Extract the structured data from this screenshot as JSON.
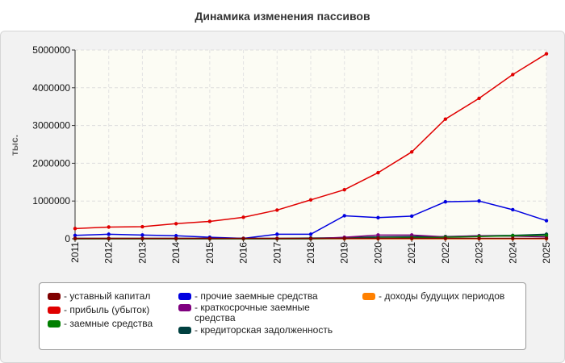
{
  "chart_data": {
    "type": "line",
    "title": "Динамика изменения пассивов",
    "ylabel": "тыс.",
    "xlabel": "",
    "x": [
      "2011",
      "2012",
      "2013",
      "2014",
      "2015",
      "2016",
      "2017",
      "2018",
      "2019",
      "2020",
      "2021",
      "2022",
      "2023",
      "2024",
      "2025"
    ],
    "ylim": [
      0,
      5000000
    ],
    "yticks": [
      "0",
      "1000000",
      "2000000",
      "3000000",
      "4000000",
      "5000000"
    ],
    "grid": true,
    "legend_position": "bottom",
    "series": [
      {
        "name": "- уставный капитал",
        "color": "#7f0000",
        "values": [
          10000,
          10000,
          10000,
          10000,
          10000,
          10000,
          10000,
          10000,
          10000,
          10000,
          10000,
          10000,
          10000,
          10000,
          10000
        ]
      },
      {
        "name": "- прибыль (убыток)",
        "color": "#e00000",
        "values": [
          270000,
          310000,
          320000,
          400000,
          460000,
          570000,
          760000,
          1030000,
          1300000,
          1750000,
          2300000,
          3170000,
          3720000,
          4350000,
          4900000
        ]
      },
      {
        "name": "- заемные средства",
        "color": "#007f00",
        "values": [
          0,
          0,
          0,
          0,
          0,
          0,
          0,
          0,
          10000,
          20000,
          30000,
          40000,
          60000,
          80000,
          90000
        ]
      },
      {
        "name": "- прочие заемные средства",
        "color": "#0000e0",
        "values": [
          90000,
          120000,
          100000,
          80000,
          40000,
          10000,
          120000,
          120000,
          610000,
          560000,
          600000,
          980000,
          1000000,
          770000,
          480000
        ]
      },
      {
        "name": "- краткосрочные заемные средства",
        "color": "#7f007f",
        "values": [
          0,
          0,
          0,
          0,
          0,
          0,
          0,
          0,
          40000,
          100000,
          100000,
          50000,
          80000,
          70000,
          50000
        ]
      },
      {
        "name": "- кредиторская задолженность",
        "color": "#004040",
        "values": [
          10000,
          10000,
          10000,
          10000,
          10000,
          10000,
          10000,
          20000,
          30000,
          50000,
          60000,
          60000,
          80000,
          90000,
          120000
        ]
      },
      {
        "name": "- доходы будущих периодов",
        "color": "#ff8000",
        "values": [
          0,
          0,
          0,
          0,
          0,
          0,
          0,
          0,
          0,
          0,
          0,
          0,
          0,
          0,
          0
        ]
      }
    ]
  }
}
